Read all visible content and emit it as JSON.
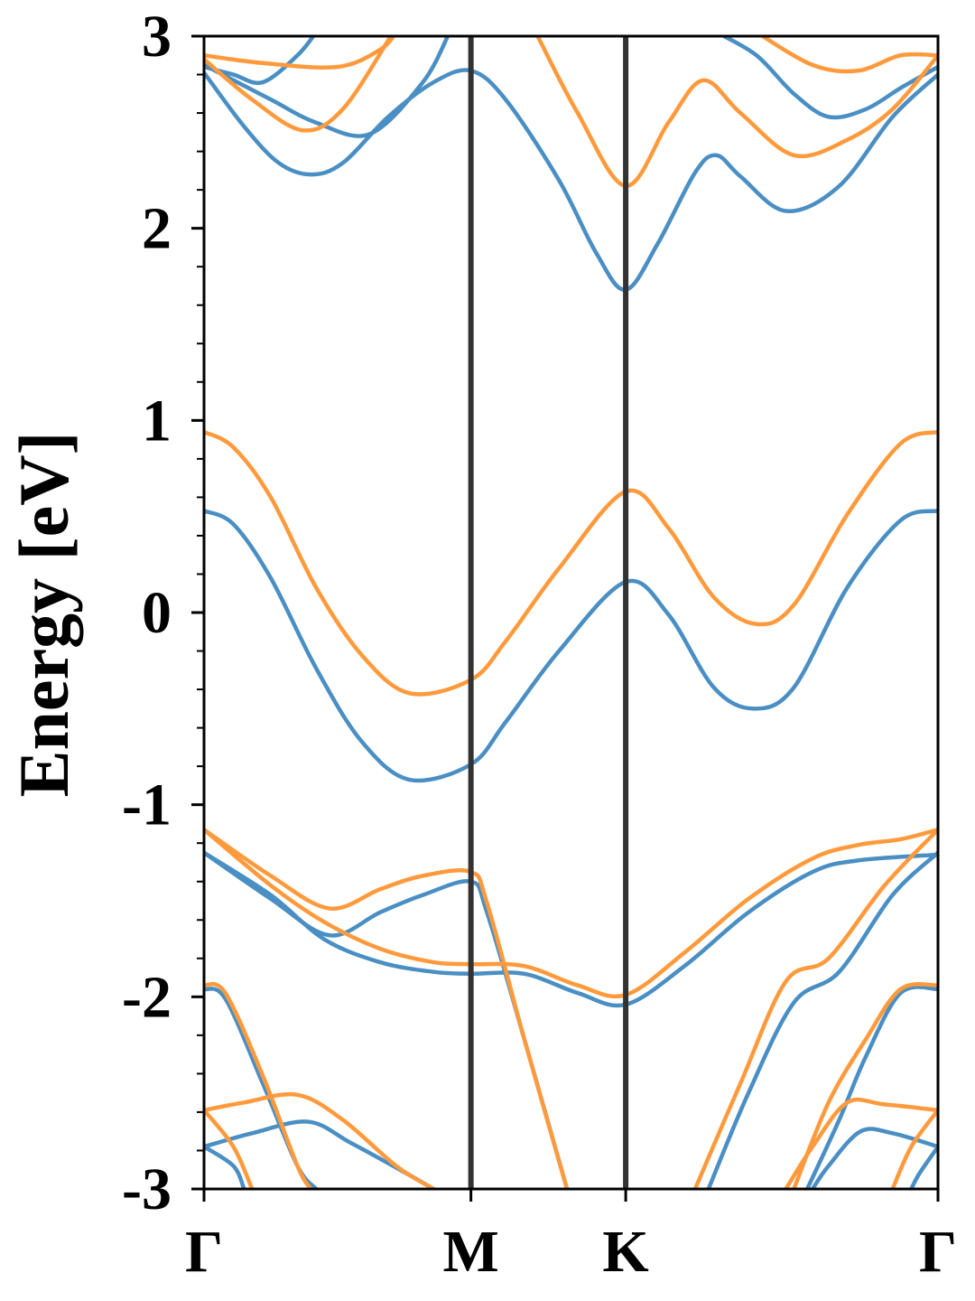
{
  "chart_data": {
    "type": "line",
    "title": "",
    "xlabel": "",
    "ylabel": "Energy [eV]",
    "ylim": [
      -3,
      3
    ],
    "xlim": [
      0,
      2.75
    ],
    "yticks": [
      3,
      2,
      1,
      0,
      -1,
      -2,
      -3
    ],
    "ytick_labels": [
      "3",
      "2",
      "1",
      "0",
      "-1",
      "-2",
      "-3"
    ],
    "yminor_step": 0.2,
    "xticks": [
      {
        "k": 0,
        "label": "Γ"
      },
      {
        "k": 1.0,
        "label": "M"
      },
      {
        "k": 1.58,
        "label": "K"
      },
      {
        "k": 2.75,
        "label": "Γ"
      }
    ],
    "vlines_at": [
      1.0,
      1.58
    ],
    "grid": false,
    "series": [
      {
        "color": "#4a8fc4",
        "bands": [
          [
            [
              0,
              0.53
            ],
            [
              0.11,
              0.46
            ],
            [
              0.25,
              0.18
            ],
            [
              0.42,
              -0.29
            ],
            [
              0.59,
              -0.67
            ],
            [
              0.77,
              -0.87
            ],
            [
              1.0,
              -0.79
            ],
            [
              1.13,
              -0.57
            ],
            [
              1.33,
              -0.2
            ],
            [
              1.58,
              0.16
            ],
            [
              1.74,
              -0.01
            ],
            [
              1.91,
              -0.39
            ],
            [
              2.06,
              -0.5
            ],
            [
              2.21,
              -0.39
            ],
            [
              2.41,
              0.13
            ],
            [
              2.61,
              0.48
            ],
            [
              2.75,
              0.53
            ]
          ],
          [
            [
              0,
              2.81
            ],
            [
              0.15,
              2.53
            ],
            [
              0.28,
              2.34
            ],
            [
              0.4,
              2.28
            ],
            [
              0.52,
              2.34
            ],
            [
              0.69,
              2.58
            ],
            [
              0.86,
              2.76
            ],
            [
              1.0,
              2.82
            ],
            [
              1.13,
              2.67
            ],
            [
              1.33,
              2.25
            ],
            [
              1.47,
              1.87
            ],
            [
              1.58,
              1.68
            ],
            [
              1.7,
              1.92
            ],
            [
              1.84,
              2.29
            ],
            [
              1.92,
              2.38
            ],
            [
              2.01,
              2.27
            ],
            [
              2.18,
              2.09
            ],
            [
              2.38,
              2.22
            ],
            [
              2.58,
              2.58
            ],
            [
              2.75,
              2.8
            ]
          ],
          [
            [
              0,
              2.85
            ],
            [
              0.25,
              2.67
            ],
            [
              0.42,
              2.55
            ],
            [
              0.62,
              2.49
            ],
            [
              0.82,
              2.76
            ],
            [
              0.92,
              3.02
            ]
          ],
          [
            [
              0,
              2.84
            ],
            [
              0.11,
              2.8
            ],
            [
              0.22,
              2.76
            ],
            [
              0.35,
              2.9
            ],
            [
              0.42,
              3.02
            ]
          ],
          [
            [
              1.92,
              3.02
            ],
            [
              2.07,
              2.9
            ],
            [
              2.21,
              2.7
            ],
            [
              2.34,
              2.58
            ],
            [
              2.48,
              2.62
            ],
            [
              2.61,
              2.73
            ],
            [
              2.75,
              2.84
            ]
          ],
          [
            [
              0,
              -1.25
            ],
            [
              0.25,
              -1.49
            ],
            [
              0.47,
              -1.68
            ],
            [
              0.66,
              -1.56
            ],
            [
              0.82,
              -1.47
            ],
            [
              1.0,
              -1.4
            ],
            [
              1.06,
              -1.56
            ],
            [
              1.2,
              -2.22
            ],
            [
              1.36,
              -3.0
            ]
          ],
          [
            [
              0,
              -1.25
            ],
            [
              0.25,
              -1.47
            ],
            [
              0.45,
              -1.7
            ],
            [
              0.66,
              -1.82
            ],
            [
              0.86,
              -1.87
            ],
            [
              1.0,
              -1.88
            ],
            [
              1.2,
              -1.88
            ],
            [
              1.4,
              -1.98
            ],
            [
              1.58,
              -2.04
            ],
            [
              1.8,
              -1.84
            ],
            [
              2.04,
              -1.56
            ],
            [
              2.28,
              -1.35
            ],
            [
              2.45,
              -1.29
            ],
            [
              2.75,
              -1.26
            ]
          ],
          [
            [
              1.89,
              -3.0
            ],
            [
              2.04,
              -2.5
            ],
            [
              2.21,
              -2.03
            ],
            [
              2.38,
              -1.87
            ],
            [
              2.58,
              -1.47
            ],
            [
              2.75,
              -1.25
            ]
          ],
          [
            [
              0,
              -1.96
            ],
            [
              0.08,
              -2.01
            ],
            [
              0.22,
              -2.45
            ],
            [
              0.35,
              -2.88
            ],
            [
              0.42,
              -3.0
            ]
          ],
          [
            [
              2.75,
              -1.96
            ],
            [
              2.61,
              -1.98
            ],
            [
              2.48,
              -2.31
            ],
            [
              2.38,
              -2.64
            ],
            [
              2.26,
              -3.0
            ]
          ],
          [
            [
              0,
              -2.78
            ],
            [
              0.18,
              -2.71
            ],
            [
              0.39,
              -2.65
            ],
            [
              0.55,
              -2.76
            ],
            [
              0.76,
              -2.92
            ],
            [
              0.86,
              -3.0
            ]
          ],
          [
            [
              0,
              -2.78
            ],
            [
              0.11,
              -2.88
            ],
            [
              0.15,
              -3.0
            ]
          ],
          [
            [
              2.75,
              -2.78
            ],
            [
              2.58,
              -2.71
            ],
            [
              2.46,
              -2.7
            ],
            [
              2.34,
              -2.88
            ],
            [
              2.28,
              -3.0
            ]
          ],
          [
            [
              2.75,
              -2.78
            ],
            [
              2.68,
              -2.92
            ],
            [
              2.65,
              -3.0
            ]
          ]
        ]
      },
      {
        "color": "#ff9a3c",
        "bands": [
          [
            [
              0,
              0.94
            ],
            [
              0.11,
              0.86
            ],
            [
              0.25,
              0.6
            ],
            [
              0.42,
              0.13
            ],
            [
              0.59,
              -0.22
            ],
            [
              0.77,
              -0.42
            ],
            [
              1.0,
              -0.35
            ],
            [
              1.13,
              -0.15
            ],
            [
              1.33,
              0.23
            ],
            [
              1.58,
              0.63
            ],
            [
              1.74,
              0.44
            ],
            [
              1.91,
              0.08
            ],
            [
              2.07,
              -0.06
            ],
            [
              2.21,
              0.04
            ],
            [
              2.41,
              0.51
            ],
            [
              2.61,
              0.88
            ],
            [
              2.75,
              0.94
            ]
          ],
          [
            [
              1.25,
              3.0
            ],
            [
              1.4,
              2.6
            ],
            [
              1.58,
              2.22
            ],
            [
              1.74,
              2.55
            ],
            [
              1.87,
              2.77
            ],
            [
              2.01,
              2.6
            ],
            [
              2.21,
              2.38
            ],
            [
              2.41,
              2.46
            ],
            [
              2.58,
              2.62
            ],
            [
              2.75,
              2.9
            ]
          ],
          [
            [
              0,
              2.88
            ],
            [
              0.18,
              2.67
            ],
            [
              0.37,
              2.51
            ],
            [
              0.52,
              2.62
            ],
            [
              0.7,
              3.0
            ]
          ],
          [
            [
              0,
              2.9
            ],
            [
              0.22,
              2.86
            ],
            [
              0.5,
              2.84
            ],
            [
              0.66,
              2.93
            ],
            [
              0.72,
              3.02
            ]
          ],
          [
            [
              2.07,
              3.02
            ],
            [
              2.28,
              2.85
            ],
            [
              2.45,
              2.82
            ],
            [
              2.61,
              2.9
            ],
            [
              2.75,
              2.9
            ]
          ],
          [
            [
              0,
              -1.13
            ],
            [
              0.25,
              -1.37
            ],
            [
              0.47,
              -1.54
            ],
            [
              0.66,
              -1.44
            ],
            [
              0.82,
              -1.37
            ],
            [
              1.0,
              -1.35
            ],
            [
              1.06,
              -1.51
            ],
            [
              1.2,
              -2.22
            ],
            [
              1.36,
              -3.0
            ]
          ],
          [
            [
              0,
              -1.13
            ],
            [
              0.25,
              -1.42
            ],
            [
              0.45,
              -1.61
            ],
            [
              0.66,
              -1.75
            ],
            [
              0.86,
              -1.82
            ],
            [
              1.0,
              -1.83
            ],
            [
              1.2,
              -1.84
            ],
            [
              1.4,
              -1.94
            ],
            [
              1.58,
              -1.99
            ],
            [
              1.8,
              -1.77
            ],
            [
              2.04,
              -1.49
            ],
            [
              2.28,
              -1.28
            ],
            [
              2.45,
              -1.21
            ],
            [
              2.61,
              -1.18
            ],
            [
              2.75,
              -1.13
            ]
          ],
          [
            [
              1.84,
              -3.0
            ],
            [
              2.01,
              -2.45
            ],
            [
              2.18,
              -1.92
            ],
            [
              2.34,
              -1.8
            ],
            [
              2.55,
              -1.42
            ],
            [
              2.75,
              -1.13
            ]
          ],
          [
            [
              0,
              -1.94
            ],
            [
              0.08,
              -1.98
            ],
            [
              0.22,
              -2.41
            ],
            [
              0.35,
              -2.88
            ],
            [
              0.4,
              -3.0
            ]
          ],
          [
            [
              2.75,
              -1.94
            ],
            [
              2.61,
              -1.96
            ],
            [
              2.48,
              -2.22
            ],
            [
              2.34,
              -2.55
            ],
            [
              2.21,
              -3.0
            ]
          ],
          [
            [
              0,
              -2.59
            ],
            [
              0.15,
              -2.55
            ],
            [
              0.35,
              -2.51
            ],
            [
              0.52,
              -2.64
            ],
            [
              0.72,
              -2.88
            ],
            [
              0.86,
              -3.0
            ]
          ],
          [
            [
              0,
              -2.59
            ],
            [
              0.11,
              -2.78
            ],
            [
              0.18,
              -3.0
            ]
          ],
          [
            [
              2.75,
              -2.59
            ],
            [
              2.55,
              -2.56
            ],
            [
              2.41,
              -2.55
            ],
            [
              2.28,
              -2.78
            ],
            [
              2.18,
              -3.0
            ]
          ],
          [
            [
              2.75,
              -2.59
            ],
            [
              2.65,
              -2.78
            ],
            [
              2.58,
              -3.0
            ]
          ]
        ]
      }
    ]
  }
}
